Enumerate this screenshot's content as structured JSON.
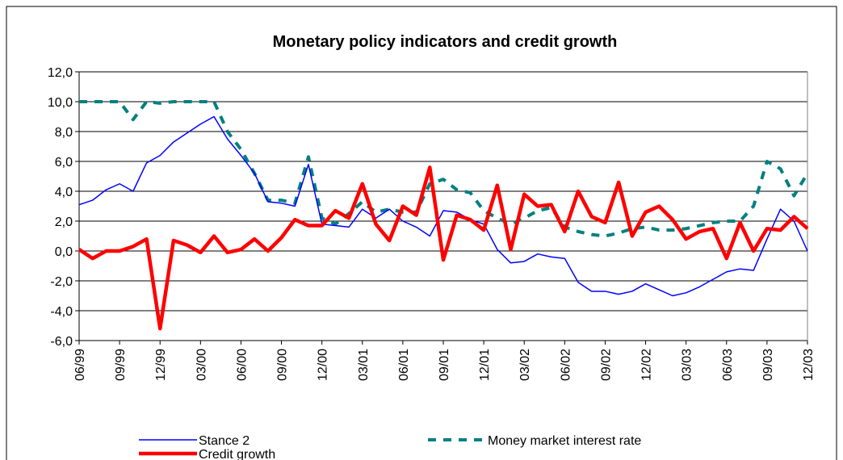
{
  "chart_data": {
    "type": "line",
    "title": "Monetary policy indicators and credit growth",
    "categories": [
      "06/99",
      null,
      null,
      "09/99",
      null,
      null,
      "12/99",
      null,
      null,
      "03/00",
      null,
      null,
      "06/00",
      null,
      null,
      "09/00",
      null,
      null,
      "12/00",
      null,
      null,
      "03/01",
      null,
      null,
      "06/01",
      null,
      null,
      "09/01",
      null,
      null,
      "12/01",
      null,
      null,
      "03/02",
      null,
      null,
      "06/02",
      null,
      null,
      "09/02",
      null,
      null,
      "12/02",
      null,
      null,
      "03/03",
      null,
      null,
      "06/03",
      null,
      null,
      "09/03",
      null,
      null,
      "12/03"
    ],
    "series": [
      {
        "name": "Stance 2",
        "color": "#0000ff",
        "values": [
          3.1,
          3.4,
          4.1,
          4.5,
          4.0,
          5.9,
          6.4,
          7.3,
          7.9,
          8.5,
          9.0,
          7.5,
          6.4,
          5.2,
          3.3,
          3.2,
          3.0,
          5.8,
          1.8,
          1.7,
          1.6,
          2.8,
          2.2,
          2.8,
          2.0,
          1.6,
          1.0,
          2.7,
          2.6,
          2.1,
          1.8,
          0.1,
          -0.8,
          -0.7,
          -0.2,
          -0.4,
          -0.5,
          -2.1,
          -2.7,
          -2.7,
          -2.9,
          -2.7,
          -2.2,
          -2.6,
          -3.0,
          -2.8,
          -2.4,
          -1.9,
          -1.4,
          -1.2,
          -1.3,
          0.8,
          2.8,
          2.0,
          0.0
        ]
      },
      {
        "name": "Money market interest rate",
        "color": "#008080",
        "values": [
          10.0,
          10.0,
          10.0,
          10.0,
          8.8,
          10.0,
          9.9,
          10.0,
          10.0,
          10.0,
          10.0,
          8.0,
          6.8,
          5.2,
          3.4,
          3.4,
          3.2,
          6.3,
          2.2,
          1.8,
          2.5,
          3.3,
          2.6,
          2.8,
          2.6,
          2.6,
          4.5,
          4.8,
          4.1,
          3.9,
          2.7,
          2.2,
          1.8,
          2.2,
          2.7,
          2.9,
          1.6,
          1.3,
          1.1,
          1.0,
          1.2,
          1.5,
          1.6,
          1.4,
          1.4,
          1.5,
          1.7,
          1.9,
          2.0,
          2.0,
          3.0,
          6.0,
          5.5,
          3.7,
          5.2
        ]
      },
      {
        "name": "Credit growth",
        "color": "#ff0000",
        "values": [
          0.1,
          -0.5,
          0.0,
          0.0,
          0.3,
          0.8,
          -5.2,
          0.7,
          0.4,
          -0.1,
          1.0,
          -0.1,
          0.1,
          0.8,
          0.0,
          0.9,
          2.1,
          1.7,
          1.7,
          2.7,
          2.2,
          4.5,
          1.8,
          0.7,
          3.0,
          2.4,
          5.6,
          -0.6,
          2.4,
          2.1,
          1.4,
          4.4,
          0.1,
          3.8,
          3.0,
          3.1,
          1.3,
          4.0,
          2.3,
          1.9,
          4.6,
          1.0,
          2.6,
          3.0,
          2.1,
          0.8,
          1.3,
          1.5,
          -0.5,
          1.9,
          0.0,
          1.5,
          1.4,
          2.3,
          1.5
        ]
      }
    ],
    "ylim": [
      -6,
      12
    ],
    "yticks": [
      {
        "value": -6,
        "label": "-6,0"
      },
      {
        "value": -4,
        "label": "-4,0"
      },
      {
        "value": -2,
        "label": "-2,0"
      },
      {
        "value": 0,
        "label": "0,0"
      },
      {
        "value": 2,
        "label": "2,0"
      },
      {
        "value": 4,
        "label": "4,0"
      },
      {
        "value": 6,
        "label": "6,0"
      },
      {
        "value": 8,
        "label": "8,0"
      },
      {
        "value": 10,
        "label": "10,0"
      },
      {
        "value": 12,
        "label": "12,0"
      }
    ],
    "grid": true
  }
}
